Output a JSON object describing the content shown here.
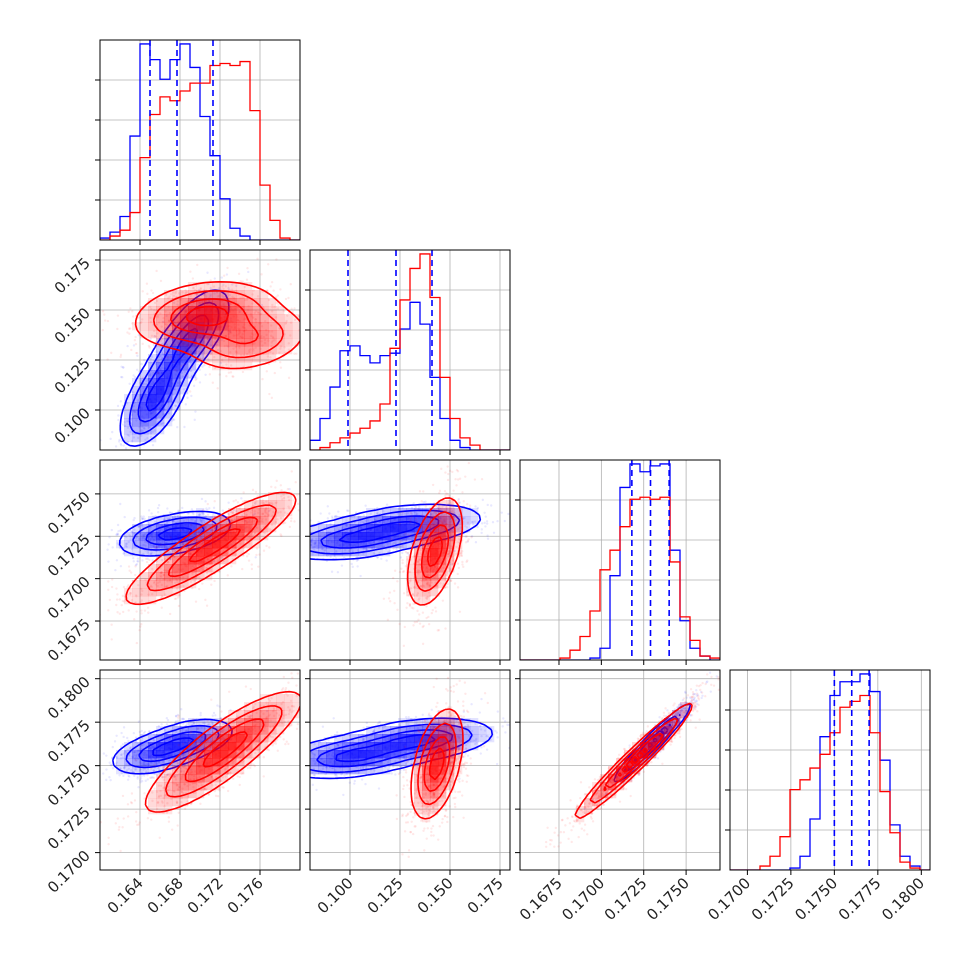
{
  "colors": {
    "series_a": "#0000ff",
    "series_b": "#ff0000",
    "grid": "#b0b0b0",
    "axes": "#000000",
    "background": "#ffffff"
  },
  "chart_data": {
    "type": "corner",
    "title": "",
    "grid": true,
    "n_params": 4,
    "series": [
      {
        "color": "#0000ff",
        "style": "step-histogram + filled density contours + scatter"
      },
      {
        "color": "#ff0000",
        "style": "step-histogram + filled density contours + scatter"
      }
    ],
    "params": [
      {
        "range": [
          0.16,
          0.18
        ],
        "ticks": [
          0.164,
          0.168,
          0.172,
          0.176
        ],
        "tick_labels": [
          "0.164",
          "0.168",
          "0.172",
          "0.176"
        ]
      },
      {
        "range": [
          0.08,
          0.18
        ],
        "ticks": [
          0.1,
          0.125,
          0.15,
          0.175
        ],
        "tick_labels": [
          "0.100",
          "0.125",
          "0.150",
          "0.175"
        ]
      },
      {
        "range": [
          0.1652,
          0.177
        ],
        "ticks": [
          0.1675,
          0.17,
          0.1725,
          0.175
        ],
        "tick_labels": [
          "0.1675",
          "0.1700",
          "0.1725",
          "0.1750"
        ]
      },
      {
        "range": [
          0.169,
          0.1805
        ],
        "ticks": [
          0.17,
          0.1725,
          0.175,
          0.1775,
          0.18
        ],
        "tick_labels": [
          "0.1700",
          "0.1725",
          "0.1750",
          "0.1775",
          "0.1800"
        ]
      }
    ],
    "quantile_lines": [
      [
        0.165,
        0.1677,
        0.1713
      ],
      [
        0.099,
        0.123,
        0.141
      ],
      [
        0.1718,
        0.1729,
        0.174
      ],
      [
        0.175,
        0.176,
        0.177
      ]
    ],
    "histograms": [
      {
        "bins": [
          0.16,
          0.18,
          20
        ],
        "blue": [
          1,
          4,
          12,
          53,
          100,
          92,
          82,
          92,
          100,
          88,
          63,
          43,
          21,
          6,
          2,
          0,
          0,
          0,
          0,
          0
        ],
        "red": [
          0,
          2,
          5,
          14,
          42,
          64,
          73,
          71,
          76,
          80,
          80,
          89,
          90,
          89,
          91,
          66,
          28,
          10,
          1,
          0
        ]
      },
      {
        "bins": [
          0.08,
          0.18,
          20
        ],
        "blue": [
          4,
          13,
          26,
          41,
          43,
          39,
          36,
          39,
          40,
          50,
          61,
          52,
          30,
          13,
          4,
          1,
          0,
          0,
          0,
          0
        ],
        "red": [
          0,
          1,
          3,
          5,
          7,
          9,
          12,
          19,
          42,
          62,
          75,
          81,
          63,
          30,
          13,
          5,
          2,
          0,
          0,
          0
        ]
      },
      {
        "bins": [
          0.1652,
          0.177,
          20
        ],
        "blue": [
          0,
          0,
          0,
          0,
          0,
          0,
          0,
          1,
          6,
          43,
          88,
          100,
          96,
          99,
          100,
          56,
          20,
          6,
          2,
          0
        ],
        "red": [
          0,
          0,
          0,
          0,
          1,
          5,
          12,
          25,
          46,
          56,
          68,
          82,
          83,
          82,
          83,
          50,
          22,
          10,
          2,
          1
        ]
      },
      {
        "bins": [
          0.169,
          0.1805,
          20
        ],
        "blue": [
          0,
          0,
          0,
          0,
          0,
          0,
          1,
          7,
          26,
          68,
          89,
          96,
          96,
          100,
          91,
          56,
          23,
          7,
          2,
          0
        ],
        "red": [
          0,
          0,
          0,
          2,
          7,
          17,
          41,
          46,
          52,
          59,
          70,
          83,
          86,
          89,
          70,
          40,
          19,
          4,
          1,
          0
        ]
      }
    ],
    "joint": [
      {
        "xi": 0,
        "yi": 1,
        "blue": {
          "cx": 0.165,
          "cy": 0.103,
          "sx": 0.0016,
          "sy": 0.01,
          "rho": 0.55,
          "peaks": [
            [
              0.165,
              0.1
            ],
            [
              0.166,
              0.112
            ],
            [
              0.168,
              0.13
            ],
            [
              0.17,
              0.142
            ]
          ]
        },
        "red": {
          "cx": 0.17,
          "cy": 0.145,
          "sx": 0.003,
          "sy": 0.008,
          "rho": 0.3,
          "peaks": [
            [
              0.169,
              0.148
            ],
            [
              0.172,
              0.147
            ],
            [
              0.175,
              0.135
            ]
          ]
        }
      },
      {
        "xi": 0,
        "yi": 2,
        "blue": {
          "cx": 0.1672,
          "cy": 0.1725,
          "sx": 0.0022,
          "sy": 0.0006,
          "rho": 0.35,
          "peaks": [
            [
              0.166,
              0.1725
            ],
            [
              0.169,
              0.1728
            ]
          ]
        },
        "red": {
          "cx": 0.1715,
          "cy": 0.1715,
          "sx": 0.0032,
          "sy": 0.0012,
          "rho": 0.8,
          "peaks": [
            [
              0.168,
              0.1705
            ],
            [
              0.1715,
              0.172
            ],
            [
              0.174,
              0.173
            ]
          ]
        }
      },
      {
        "xi": 1,
        "yi": 2,
        "blue": {
          "cx": 0.11,
          "cy": 0.1724,
          "sx": 0.018,
          "sy": 0.0006,
          "rho": 0.3,
          "peaks": [
            [
              0.1,
              0.1723
            ],
            [
              0.13,
              0.1732
            ]
          ]
        },
        "red": {
          "cx": 0.143,
          "cy": 0.1718,
          "sx": 0.006,
          "sy": 0.0014,
          "rho": 0.4,
          "peaks": [
            [
              0.145,
              0.1722
            ],
            [
              0.14,
              0.171
            ]
          ]
        }
      },
      {
        "xi": 0,
        "yi": 3,
        "blue": {
          "cx": 0.1672,
          "cy": 0.176,
          "sx": 0.0022,
          "sy": 0.0006,
          "rho": 0.4,
          "peaks": [
            [
              0.1655,
              0.1757
            ],
            [
              0.169,
              0.1765
            ]
          ]
        },
        "red": {
          "cx": 0.1715,
          "cy": 0.1755,
          "sx": 0.0032,
          "sy": 0.0013,
          "rho": 0.8,
          "peaks": [
            [
              0.17,
              0.1745
            ],
            [
              0.1725,
              0.176
            ],
            [
              0.1745,
              0.177
            ]
          ]
        }
      },
      {
        "xi": 1,
        "yi": 3,
        "blue": {
          "cx": 0.11,
          "cy": 0.1758,
          "sx": 0.018,
          "sy": 0.0006,
          "rho": 0.3,
          "peaks": [
            [
              0.1,
              0.1755
            ],
            [
              0.135,
              0.1765
            ]
          ]
        },
        "red": {
          "cx": 0.143,
          "cy": 0.1755,
          "sx": 0.006,
          "sy": 0.0014,
          "rho": 0.4,
          "peaks": [
            [
              0.145,
              0.1757
            ],
            [
              0.142,
              0.1745
            ]
          ]
        }
      },
      {
        "xi": 2,
        "yi": 3,
        "blue": {
          "cx": 0.173,
          "cy": 0.1763,
          "sx": 0.0011,
          "sy": 0.0011,
          "rho": 0.96,
          "peaks": [
            [
              0.173,
              0.1763
            ]
          ]
        },
        "red": {
          "cx": 0.1722,
          "cy": 0.1757,
          "sx": 0.0014,
          "sy": 0.0014,
          "rho": 0.96,
          "peaks": [
            [
              0.171,
              0.1745
            ],
            [
              0.1728,
              0.176
            ]
          ]
        }
      }
    ]
  }
}
